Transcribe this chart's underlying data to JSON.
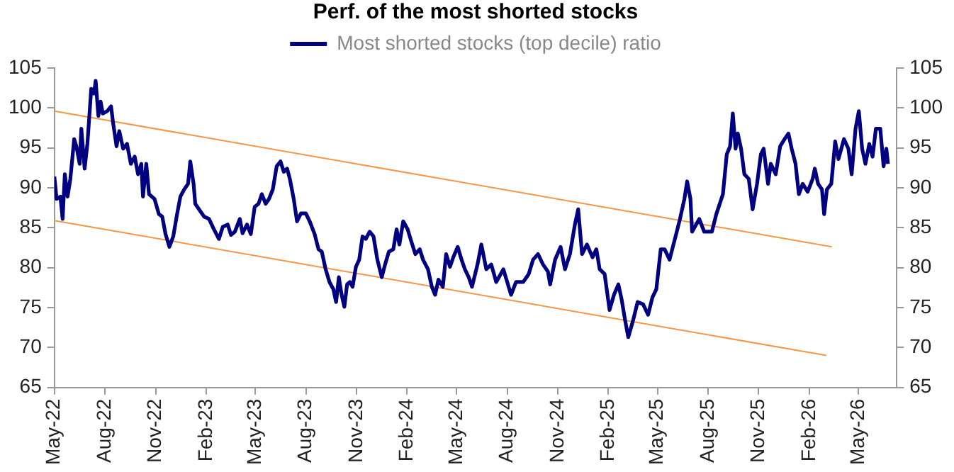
{
  "chart_data": {
    "type": "line",
    "title": "Perf. of the most shorted stocks",
    "xlim": [
      "2022-05-01",
      "2026-07-10"
    ],
    "xticks": [
      {
        "value": "2022-05-01",
        "label": "May-22"
      },
      {
        "value": "2022-08-01",
        "label": "Aug-22"
      },
      {
        "value": "2022-11-01",
        "label": "Nov-22"
      },
      {
        "value": "2023-02-01",
        "label": "Feb-23"
      },
      {
        "value": "2023-05-01",
        "label": "May-23"
      },
      {
        "value": "2023-08-01",
        "label": "Aug-23"
      },
      {
        "value": "2023-11-01",
        "label": "Nov-23"
      },
      {
        "value": "2024-02-01",
        "label": "Feb-24"
      },
      {
        "value": "2024-05-01",
        "label": "May-24"
      },
      {
        "value": "2024-08-01",
        "label": "Aug-24"
      },
      {
        "value": "2024-11-01",
        "label": "Nov-24"
      },
      {
        "value": "2025-02-01",
        "label": "Feb-25"
      },
      {
        "value": "2025-05-01",
        "label": "May-25"
      },
      {
        "value": "2025-08-01",
        "label": "Aug-25"
      },
      {
        "value": "2025-11-01",
        "label": "Nov-25"
      },
      {
        "value": "2026-02-01",
        "label": "Feb-26"
      },
      {
        "value": "2026-05-01",
        "label": "May-26"
      }
    ],
    "ylim": [
      65,
      105
    ],
    "yticks": [
      65,
      70,
      75,
      80,
      85,
      90,
      95,
      100,
      105
    ],
    "y2lim": [
      65,
      105
    ],
    "y2ticks": [
      65,
      70,
      75,
      80,
      85,
      90,
      95,
      100,
      105
    ],
    "grid": false,
    "legend": "top",
    "line_style": "solid",
    "marker": "none",
    "series": [
      {
        "name": "Most shorted stocks (top decile) ratio",
        "color": "#000080",
        "x": [
          "2022-05-01",
          "2022-05-05",
          "2022-05-12",
          "2022-05-16",
          "2022-05-20",
          "2022-05-25",
          "2022-05-30",
          "2022-06-06",
          "2022-06-10",
          "2022-06-16",
          "2022-06-19",
          "2022-06-25",
          "2022-06-30",
          "2022-07-07",
          "2022-07-12",
          "2022-07-15",
          "2022-07-20",
          "2022-07-24",
          "2022-07-28",
          "2022-08-05",
          "2022-08-12",
          "2022-08-16",
          "2022-08-22",
          "2022-08-27",
          "2022-09-03",
          "2022-09-10",
          "2022-09-17",
          "2022-09-24",
          "2022-09-30",
          "2022-10-06",
          "2022-10-09",
          "2022-10-15",
          "2022-10-20",
          "2022-10-30",
          "2022-11-07",
          "2022-11-13",
          "2022-11-19",
          "2022-11-26",
          "2022-12-03",
          "2022-12-10",
          "2022-12-16",
          "2022-12-23",
          "2022-12-30",
          "2023-01-03",
          "2023-01-09",
          "2023-01-12",
          "2023-01-19",
          "2023-01-28",
          "2023-02-06",
          "2023-02-15",
          "2023-02-24",
          "2023-03-03",
          "2023-03-12",
          "2023-03-18",
          "2023-03-25",
          "2023-04-03",
          "2023-04-08",
          "2023-04-16",
          "2023-04-23",
          "2023-04-30",
          "2023-05-07",
          "2023-05-13",
          "2023-05-20",
          "2023-05-26",
          "2023-06-02",
          "2023-06-09",
          "2023-06-16",
          "2023-06-22",
          "2023-06-28",
          "2023-07-03",
          "2023-07-10",
          "2023-07-16",
          "2023-07-23",
          "2023-08-01",
          "2023-08-08",
          "2023-08-17",
          "2023-08-24",
          "2023-08-30",
          "2023-09-06",
          "2023-09-13",
          "2023-09-20",
          "2023-09-25",
          "2023-09-30",
          "2023-10-05",
          "2023-10-10",
          "2023-10-15",
          "2023-10-20",
          "2023-10-25",
          "2023-10-31",
          "2023-11-06",
          "2023-11-12",
          "2023-11-18",
          "2023-11-25",
          "2023-12-02",
          "2023-12-09",
          "2023-12-17",
          "2023-12-23",
          "2023-12-30",
          "2024-01-07",
          "2024-01-13",
          "2024-01-18",
          "2024-01-25",
          "2024-02-02",
          "2024-02-09",
          "2024-02-16",
          "2024-02-24",
          "2024-03-01",
          "2024-03-10",
          "2024-03-17",
          "2024-03-23",
          "2024-03-29",
          "2024-04-06",
          "2024-04-12",
          "2024-04-19",
          "2024-04-25",
          "2024-05-03",
          "2024-05-10",
          "2024-05-16",
          "2024-05-23",
          "2024-05-29",
          "2024-06-08",
          "2024-06-15",
          "2024-06-24",
          "2024-07-03",
          "2024-07-12",
          "2024-07-25",
          "2024-08-08",
          "2024-08-17",
          "2024-08-30",
          "2024-09-09",
          "2024-09-17",
          "2024-09-26",
          "2024-10-05",
          "2024-10-14",
          "2024-10-18",
          "2024-10-27",
          "2024-11-06",
          "2024-11-14",
          "2024-11-23",
          "2024-12-02",
          "2024-12-08",
          "2024-12-15",
          "2024-12-24",
          "2025-01-03",
          "2025-01-10",
          "2025-01-16",
          "2025-01-25",
          "2025-02-03",
          "2025-02-11",
          "2025-02-19",
          "2025-02-25",
          "2025-03-03",
          "2025-03-09",
          "2025-03-17",
          "2025-03-26",
          "2025-04-05",
          "2025-04-14",
          "2025-04-22",
          "2025-04-29",
          "2025-05-07",
          "2025-05-14",
          "2025-05-23",
          "2025-06-04",
          "2025-06-11",
          "2025-06-19",
          "2025-06-24",
          "2025-06-30",
          "2025-07-03",
          "2025-07-16",
          "2025-07-25",
          "2025-08-08",
          "2025-08-16",
          "2025-08-28",
          "2025-09-04",
          "2025-09-10",
          "2025-09-15",
          "2025-09-20",
          "2025-09-24",
          "2025-09-30",
          "2025-10-06",
          "2025-10-14",
          "2025-10-21",
          "2025-10-29",
          "2025-11-05",
          "2025-11-10",
          "2025-11-18",
          "2025-11-23",
          "2025-12-02",
          "2025-12-10",
          "2025-12-19",
          "2025-12-25",
          "2025-12-31",
          "2026-01-07",
          "2026-01-13",
          "2026-01-20",
          "2026-01-29",
          "2026-02-07",
          "2026-02-11",
          "2026-02-17",
          "2026-02-24",
          "2026-02-28",
          "2026-03-05",
          "2026-03-13",
          "2026-03-20",
          "2026-03-26",
          "2026-04-05",
          "2026-04-13",
          "2026-04-19",
          "2026-04-26",
          "2026-05-02",
          "2026-05-08",
          "2026-05-14",
          "2026-05-21",
          "2026-05-27",
          "2026-06-02",
          "2026-06-10",
          "2026-06-16",
          "2026-06-21",
          "2026-06-24"
        ],
        "values": [
          91.4,
          88.6,
          88.9,
          86.1,
          91.7,
          88.9,
          91.1,
          96.1,
          95.2,
          93.0,
          97.4,
          92.4,
          95.5,
          102.4,
          101.8,
          103.4,
          99.0,
          100.8,
          99.3,
          99.6,
          100.2,
          98.0,
          95.2,
          97.1,
          94.9,
          95.5,
          93.0,
          93.9,
          91.7,
          93.0,
          88.9,
          93.0,
          89.2,
          88.6,
          86.7,
          86.4,
          84.2,
          82.6,
          83.9,
          86.7,
          88.9,
          89.8,
          90.5,
          93.3,
          90.5,
          88.0,
          87.3,
          86.4,
          86.1,
          84.8,
          83.6,
          85.1,
          85.4,
          84.1,
          84.5,
          86.1,
          84.3,
          85.4,
          84.2,
          87.6,
          88.0,
          89.2,
          88.0,
          88.6,
          89.8,
          92.7,
          93.3,
          92.0,
          92.4,
          91.1,
          88.6,
          85.8,
          86.8,
          86.8,
          85.8,
          84.2,
          82.3,
          82.0,
          79.8,
          78.2,
          77.3,
          75.7,
          78.8,
          76.6,
          75.1,
          77.9,
          78.2,
          77.6,
          80.1,
          81.0,
          83.9,
          83.6,
          84.5,
          83.9,
          81.0,
          78.8,
          80.4,
          82.0,
          82.3,
          84.8,
          82.9,
          85.8,
          84.8,
          83.2,
          81.7,
          82.3,
          81.0,
          79.8,
          77.6,
          76.6,
          78.5,
          77.6,
          81.7,
          80.1,
          81.3,
          82.6,
          81.0,
          79.8,
          78.8,
          77.6,
          80.4,
          82.9,
          79.8,
          80.4,
          78.2,
          79.8,
          76.6,
          78.2,
          78.2,
          79.2,
          81.0,
          81.7,
          80.4,
          79.5,
          77.9,
          81.0,
          82.6,
          79.8,
          81.7,
          85.4,
          87.3,
          81.7,
          82.9,
          81.3,
          82.3,
          79.8,
          79.2,
          74.7,
          76.6,
          77.9,
          76.0,
          73.5,
          71.3,
          73.2,
          75.7,
          75.4,
          74.1,
          76.3,
          77.3,
          82.3,
          82.3,
          81.0,
          84.2,
          86.1,
          88.6,
          90.8,
          88.6,
          84.5,
          86.1,
          84.5,
          84.5,
          86.7,
          89.2,
          94.2,
          95.2,
          99.3,
          94.9,
          96.8,
          94.9,
          91.7,
          91.1,
          87.3,
          90.5,
          94.2,
          94.9,
          90.5,
          93.0,
          91.7,
          95.2,
          96.2,
          96.8,
          94.9,
          93.0,
          89.2,
          90.5,
          89.5,
          91.1,
          92.4,
          90.5,
          89.8,
          86.7,
          89.8,
          90.5,
          95.8,
          93.6,
          96.1,
          94.9,
          91.7,
          97.4,
          99.6,
          94.9,
          93.0,
          95.5,
          93.9,
          97.4,
          97.4,
          92.7,
          94.9,
          93.0
        ]
      },
      {
        "type": "line",
        "color": "#f79646",
        "x": [
          "2022-05-01",
          "2026-03-14"
        ],
        "values": [
          99.6,
          82.6
        ]
      },
      {
        "type": "line",
        "color": "#f79646",
        "x": [
          "2022-05-01",
          "2026-03-04"
        ],
        "values": [
          85.9,
          69.0
        ]
      }
    ]
  }
}
